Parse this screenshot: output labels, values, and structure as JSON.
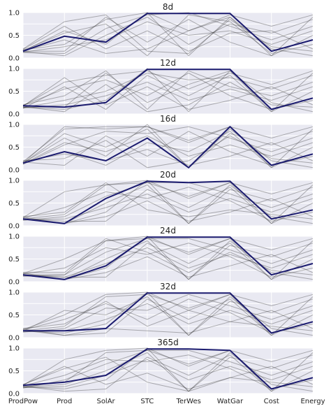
{
  "chart_data": {
    "type": "parallel-coordinates",
    "axes": [
      "ProdPow",
      "Prod",
      "SolAr",
      "STC",
      "TerWes",
      "WatGar",
      "Cost",
      "Energy"
    ],
    "ylim": [
      0,
      1.0
    ],
    "yticks": [
      "0.0",
      "0.5",
      "1.0"
    ],
    "grid": true,
    "colors": {
      "background": "#e9e9f2",
      "lines": "#2b2b2b",
      "highlight": "#1a1a6e",
      "grid": "#ffffff"
    },
    "panels": [
      {
        "title": "8d",
        "highlight": [
          0.15,
          0.48,
          0.35,
          0.98,
          0.98,
          0.98,
          0.15,
          0.4
        ],
        "series": [
          [
            0.18,
            0.3,
            0.85,
            1.0,
            0.6,
            0.95,
            0.7,
            0.95
          ],
          [
            0.15,
            0.6,
            0.3,
            1.0,
            0.05,
            0.9,
            0.2,
            0.05
          ],
          [
            0.12,
            0.1,
            0.65,
            0.95,
            1.0,
            0.7,
            0.4,
            0.7
          ],
          [
            0.16,
            0.4,
            0.1,
            0.2,
            0.6,
            0.9,
            0.05,
            0.5
          ],
          [
            0.2,
            0.8,
            0.95,
            0.15,
            0.1,
            0.85,
            0.25,
            0.15
          ],
          [
            0.14,
            0.05,
            0.5,
            0.9,
            0.3,
            0.75,
            0.55,
            0.85
          ],
          [
            0.17,
            0.55,
            0.75,
            0.05,
            0.95,
            0.8,
            0.1,
            0.3
          ],
          [
            0.13,
            0.25,
            0.4,
            0.8,
            0.5,
            0.6,
            0.3,
            0.6
          ],
          [
            0.19,
            0.7,
            0.2,
            0.6,
            0.15,
            0.55,
            0.6,
            0.2
          ],
          [
            0.15,
            0.15,
            0.9,
            0.35,
            0.85,
            0.35,
            0.05,
            0.9
          ]
        ]
      },
      {
        "title": "12d",
        "highlight": [
          0.18,
          0.15,
          0.25,
          0.98,
          0.98,
          0.98,
          0.1,
          0.35
        ],
        "series": [
          [
            0.18,
            0.7,
            0.85,
            0.95,
            0.55,
            0.9,
            0.65,
            0.95
          ],
          [
            0.15,
            0.1,
            0.3,
            1.0,
            0.05,
            0.95,
            0.25,
            0.05
          ],
          [
            0.2,
            0.4,
            0.95,
            0.1,
            0.95,
            0.6,
            0.4,
            0.7
          ],
          [
            0.12,
            0.6,
            0.1,
            0.85,
            0.4,
            0.85,
            0.05,
            0.5
          ],
          [
            0.16,
            0.05,
            0.65,
            0.05,
            0.2,
            0.7,
            0.2,
            0.15
          ],
          [
            0.14,
            0.3,
            0.5,
            0.9,
            0.75,
            0.8,
            0.55,
            0.85
          ],
          [
            0.19,
            0.55,
            0.75,
            0.4,
            0.9,
            0.4,
            0.1,
            0.3
          ],
          [
            0.13,
            0.2,
            0.4,
            0.7,
            0.3,
            0.55,
            0.3,
            0.6
          ],
          [
            0.17,
            0.8,
            0.2,
            0.6,
            0.1,
            0.3,
            0.6,
            0.2
          ],
          [
            0.15,
            0.15,
            0.9,
            0.25,
            0.65,
            0.95,
            0.05,
            0.9
          ]
        ]
      },
      {
        "title": "16d",
        "highlight": [
          0.15,
          0.4,
          0.2,
          0.7,
          0.05,
          0.95,
          0.1,
          0.35
        ],
        "series": [
          [
            0.18,
            0.9,
            0.95,
            0.95,
            0.6,
            0.95,
            0.7,
            0.95
          ],
          [
            0.15,
            0.7,
            0.3,
            1.0,
            0.05,
            0.9,
            0.2,
            0.05
          ],
          [
            0.12,
            0.55,
            0.85,
            0.8,
            0.95,
            0.7,
            0.4,
            0.7
          ],
          [
            0.16,
            0.4,
            0.1,
            0.6,
            0.4,
            0.85,
            0.05,
            0.5
          ],
          [
            0.2,
            0.25,
            0.65,
            0.05,
            0.2,
            0.75,
            0.25,
            0.15
          ],
          [
            0.14,
            0.8,
            0.5,
            0.9,
            0.05,
            0.8,
            0.55,
            0.85
          ],
          [
            0.17,
            0.1,
            0.75,
            0.3,
            0.85,
            0.4,
            0.1,
            0.3
          ],
          [
            0.13,
            0.6,
            0.4,
            0.75,
            0.3,
            0.55,
            0.3,
            0.6
          ],
          [
            0.19,
            0.35,
            0.2,
            0.45,
            0.1,
            0.3,
            0.6,
            0.2
          ],
          [
            0.15,
            0.95,
            0.9,
            0.95,
            0.65,
            0.95,
            0.05,
            0.9
          ]
        ]
      },
      {
        "title": "20d",
        "highlight": [
          0.15,
          0.05,
          0.6,
          0.98,
          0.95,
          0.98,
          0.15,
          0.35
        ],
        "series": [
          [
            0.18,
            0.75,
            0.9,
            1.0,
            0.6,
            0.95,
            0.7,
            0.95
          ],
          [
            0.15,
            0.05,
            0.3,
            1.0,
            0.05,
            0.9,
            0.2,
            0.05
          ],
          [
            0.12,
            0.2,
            0.65,
            0.95,
            0.95,
            0.7,
            0.4,
            0.7
          ],
          [
            0.16,
            0.1,
            0.1,
            0.8,
            0.4,
            0.85,
            0.05,
            0.5
          ],
          [
            0.2,
            0.3,
            0.95,
            0.35,
            0.2,
            0.35,
            0.25,
            0.15
          ],
          [
            0.14,
            0.05,
            0.5,
            0.9,
            0.05,
            0.8,
            0.55,
            0.85
          ],
          [
            0.17,
            0.4,
            0.75,
            0.6,
            0.85,
            0.55,
            0.1,
            0.3
          ],
          [
            0.13,
            0.15,
            0.4,
            0.7,
            0.3,
            0.6,
            0.3,
            0.6
          ],
          [
            0.19,
            0.05,
            0.2,
            0.55,
            0.1,
            0.3,
            0.6,
            0.2
          ],
          [
            0.15,
            0.25,
            0.9,
            0.95,
            0.65,
            0.95,
            0.05,
            0.9
          ]
        ]
      },
      {
        "title": "24d",
        "highlight": [
          0.15,
          0.05,
          0.35,
          0.98,
          0.98,
          0.98,
          0.15,
          0.4
        ],
        "series": [
          [
            0.18,
            0.5,
            0.9,
            1.0,
            0.6,
            0.95,
            0.7,
            0.95
          ],
          [
            0.15,
            0.05,
            0.3,
            1.0,
            0.05,
            0.9,
            0.2,
            0.05
          ],
          [
            0.12,
            0.15,
            0.65,
            0.95,
            0.95,
            0.7,
            0.4,
            0.7
          ],
          [
            0.16,
            0.1,
            0.1,
            0.85,
            0.4,
            0.85,
            0.05,
            0.5
          ],
          [
            0.2,
            0.2,
            0.95,
            0.65,
            0.2,
            0.65,
            0.25,
            0.15
          ],
          [
            0.14,
            0.05,
            0.5,
            0.9,
            0.05,
            0.8,
            0.55,
            0.85
          ],
          [
            0.17,
            0.3,
            0.75,
            0.6,
            0.85,
            0.55,
            0.1,
            0.3
          ],
          [
            0.13,
            0.1,
            0.4,
            0.75,
            0.3,
            0.6,
            0.3,
            0.6
          ],
          [
            0.19,
            0.05,
            0.2,
            0.55,
            0.1,
            0.35,
            0.6,
            0.2
          ],
          [
            0.15,
            0.15,
            0.9,
            0.95,
            0.65,
            0.95,
            0.05,
            0.9
          ]
        ]
      },
      {
        "title": "32d",
        "highlight": [
          0.15,
          0.15,
          0.2,
          0.98,
          0.98,
          0.98,
          0.1,
          0.35
        ],
        "series": [
          [
            0.18,
            0.5,
            0.95,
            1.0,
            0.6,
            0.95,
            0.7,
            0.95
          ],
          [
            0.15,
            0.1,
            0.3,
            1.0,
            0.05,
            0.9,
            0.2,
            0.05
          ],
          [
            0.12,
            0.2,
            0.65,
            0.6,
            0.95,
            0.7,
            0.4,
            0.7
          ],
          [
            0.16,
            0.05,
            0.1,
            0.85,
            0.4,
            0.85,
            0.05,
            0.5
          ],
          [
            0.2,
            0.3,
            0.8,
            0.25,
            0.6,
            0.35,
            0.25,
            0.15
          ],
          [
            0.14,
            0.6,
            0.5,
            0.9,
            0.05,
            0.8,
            0.55,
            0.85
          ],
          [
            0.17,
            0.4,
            0.75,
            0.4,
            0.85,
            0.55,
            0.1,
            0.3
          ],
          [
            0.13,
            0.15,
            0.4,
            0.75,
            0.3,
            0.6,
            0.3,
            0.6
          ],
          [
            0.19,
            0.05,
            0.2,
            0.15,
            0.1,
            0.35,
            0.6,
            0.2
          ],
          [
            0.15,
            0.25,
            0.9,
            0.95,
            0.65,
            0.95,
            0.05,
            0.9
          ]
        ]
      },
      {
        "title": "365d",
        "highlight": [
          0.18,
          0.25,
          0.4,
          0.98,
          0.98,
          0.95,
          0.1,
          0.35
        ],
        "series": [
          [
            0.18,
            0.75,
            0.95,
            1.0,
            0.6,
            0.95,
            0.7,
            0.95
          ],
          [
            0.15,
            0.1,
            0.3,
            1.0,
            0.05,
            0.9,
            0.2,
            0.05
          ],
          [
            0.12,
            0.3,
            0.65,
            0.95,
            0.95,
            0.7,
            0.4,
            0.7
          ],
          [
            0.16,
            0.05,
            0.1,
            0.8,
            0.4,
            0.85,
            0.05,
            0.5
          ],
          [
            0.2,
            0.55,
            0.8,
            0.25,
            0.05,
            0.35,
            0.25,
            0.15
          ],
          [
            0.14,
            0.2,
            0.5,
            0.9,
            0.05,
            0.8,
            0.55,
            0.85
          ],
          [
            0.17,
            0.4,
            0.75,
            0.7,
            0.85,
            0.55,
            0.1,
            0.3
          ],
          [
            0.13,
            0.15,
            0.4,
            0.75,
            0.3,
            0.6,
            0.3,
            0.6
          ],
          [
            0.19,
            0.6,
            0.2,
            0.45,
            0.1,
            0.35,
            0.6,
            0.2
          ],
          [
            0.15,
            0.25,
            0.9,
            0.95,
            0.65,
            0.95,
            0.05,
            0.9
          ]
        ]
      }
    ]
  }
}
